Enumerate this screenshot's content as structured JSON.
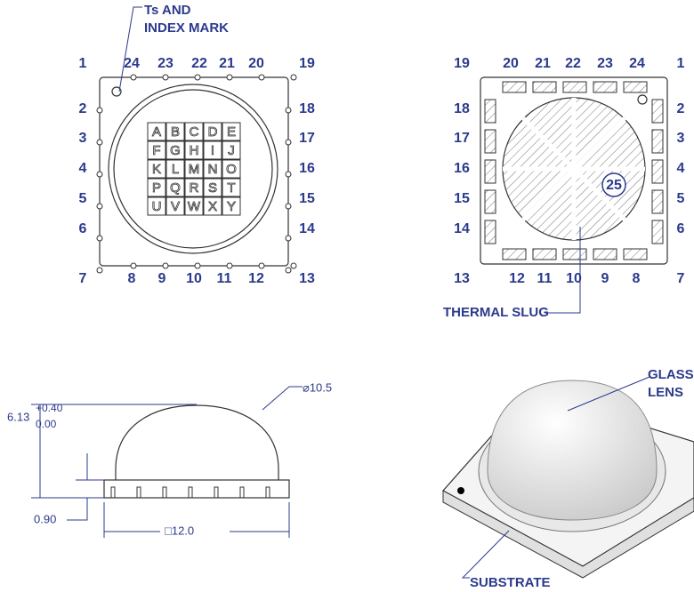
{
  "top_view": {
    "index_label": [
      "Ts AND",
      "INDEX MARK"
    ],
    "pins_top": [
      "1",
      "24",
      "23",
      "22",
      "21",
      "20",
      "19"
    ],
    "pins_left": [
      "2",
      "3",
      "4",
      "5",
      "6"
    ],
    "pins_right": [
      "18",
      "17",
      "16",
      "15",
      "14"
    ],
    "pins_bottom": [
      "7",
      "8",
      "9",
      "10",
      "11",
      "12",
      "13"
    ],
    "die_grid": [
      "A",
      "B",
      "C",
      "D",
      "E",
      "F",
      "G",
      "H",
      "I",
      "J",
      "K",
      "L",
      "M",
      "N",
      "O",
      "P",
      "Q",
      "R",
      "S",
      "T",
      "U",
      "V",
      "W",
      "X",
      "Y"
    ]
  },
  "bottom_view": {
    "pins_top": [
      "19",
      "20",
      "21",
      "22",
      "23",
      "24",
      "1"
    ],
    "pins_left": [
      "18",
      "17",
      "16",
      "15",
      "14"
    ],
    "pins_right": [
      "2",
      "3",
      "4",
      "5",
      "6"
    ],
    "pins_bottom": [
      "13",
      "12",
      "11",
      "10",
      "9",
      "8",
      "7"
    ],
    "thermal_pad": "25",
    "thermal_label": "THERMAL SLUG"
  },
  "side_view": {
    "diameter": "⌀10.5",
    "height": "6.13",
    "tol_upper": "+0.40",
    "tol_lower": "0.00",
    "substrate_height": "0.90",
    "width": "□12.0"
  },
  "perspective_view": {
    "lens_label": [
      "GLASS",
      "LENS"
    ],
    "substrate_label": "SUBSTRATE"
  }
}
